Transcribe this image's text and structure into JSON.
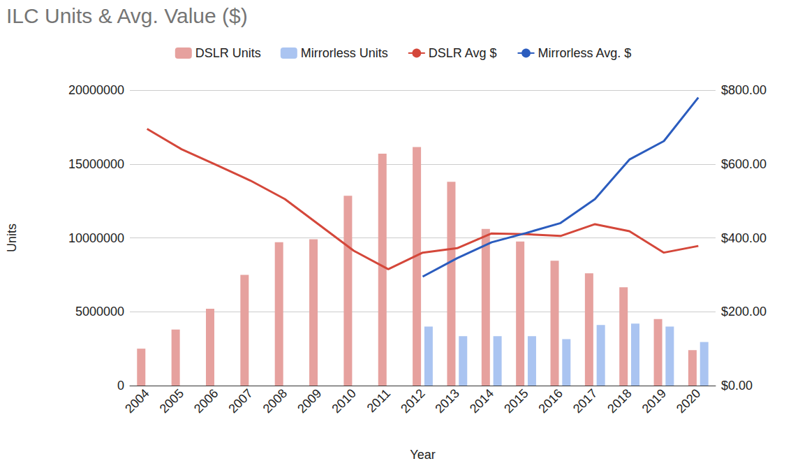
{
  "chart_data": {
    "type": "bar",
    "title": "ILC Units & Avg. Value ($)",
    "x_label": "Year",
    "y_label": "Units",
    "categories": [
      "2004",
      "2005",
      "2006",
      "2007",
      "2008",
      "2009",
      "2010",
      "2011",
      "2012",
      "2013",
      "2014",
      "2015",
      "2016",
      "2017",
      "2018",
      "2019",
      "2020"
    ],
    "series": [
      {
        "name": "DSLR Units",
        "type": "bar",
        "color": "#e6a19e",
        "values": [
          2500000,
          3800000,
          5200000,
          7500000,
          9700000,
          9900000,
          12850000,
          15700000,
          16150000,
          13800000,
          10600000,
          9750000,
          8450000,
          7600000,
          6650000,
          4500000,
          2400000
        ]
      },
      {
        "name": "Mirrorless Units",
        "type": "bar",
        "color": "#aac4f1",
        "values": [
          null,
          null,
          null,
          null,
          null,
          null,
          null,
          null,
          4000000,
          3350000,
          3350000,
          3350000,
          3150000,
          4100000,
          4200000,
          4000000,
          2950000
        ]
      },
      {
        "name": "DSLR Avg $",
        "type": "line",
        "axis": "y2",
        "color": "#d4473a",
        "values": [
          695,
          640,
          598,
          555,
          505,
          435,
          365,
          315,
          360,
          372,
          412,
          410,
          405,
          437,
          418,
          360,
          378
        ]
      },
      {
        "name": "Mirrorless Avg. $",
        "type": "line",
        "axis": "y2",
        "color": "#2b5cbe",
        "values": [
          null,
          null,
          null,
          null,
          null,
          null,
          null,
          null,
          295,
          345,
          388,
          413,
          440,
          505,
          612,
          662,
          780
        ]
      }
    ],
    "ylim": [
      0,
      20000000
    ],
    "yticks": [
      0,
      5000000,
      10000000,
      15000000,
      20000000
    ],
    "y2lim": [
      0,
      800
    ],
    "y2ticks": [
      {
        "value": 0,
        "label": "$0.00"
      },
      {
        "value": 200,
        "label": "$200.00"
      },
      {
        "value": 400,
        "label": "$400.00"
      },
      {
        "value": 600,
        "label": "$600.00"
      },
      {
        "value": 800,
        "label": "$800.00"
      }
    ],
    "grid": true,
    "legend": "top"
  }
}
